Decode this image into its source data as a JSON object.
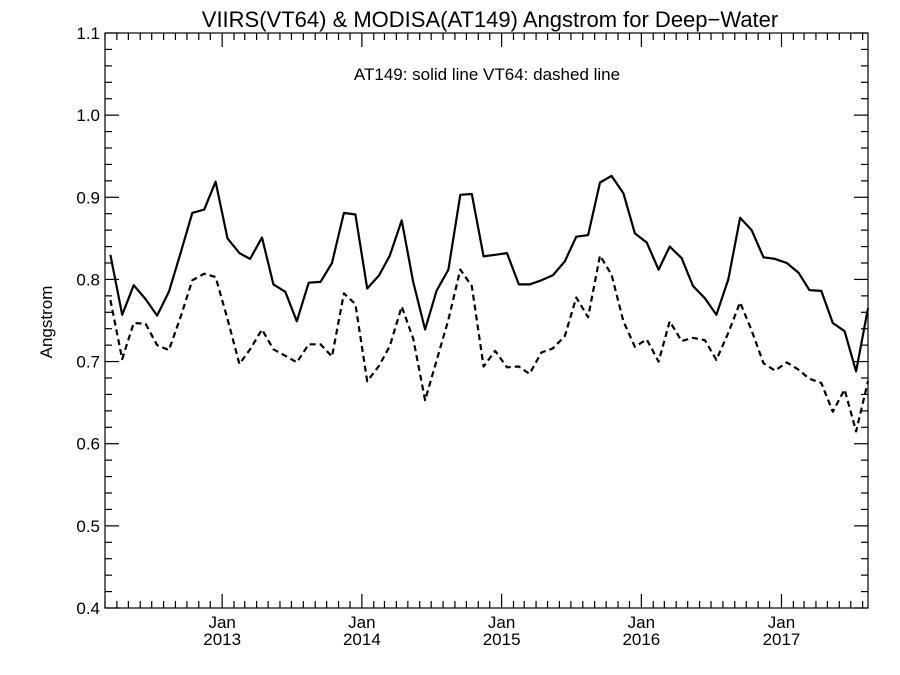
{
  "chart_data": {
    "type": "line",
    "title": "VIIRS(VT64) & MODISA(AT149)  Angstrom for Deep−Water",
    "annotation": "AT149: solid line   VT64: dashed line",
    "ylabel": "Angstrom",
    "ylim": [
      0.4,
      1.1
    ],
    "xlim": [
      "2012-03-01",
      "2017-08-15"
    ],
    "yticks": [
      "0.4",
      "0.5",
      "0.6",
      "0.7",
      "0.8",
      "0.9",
      "1.0",
      "1.1"
    ],
    "xticks": [
      {
        "month": "Jan",
        "year": "2013",
        "date": "2013-01-01"
      },
      {
        "month": "Jan",
        "year": "2014",
        "date": "2014-01-01"
      },
      {
        "month": "Jan",
        "year": "2015",
        "date": "2015-01-01"
      },
      {
        "month": "Jan",
        "year": "2016",
        "date": "2016-01-01"
      },
      {
        "month": "Jan",
        "year": "2017",
        "date": "2017-01-01"
      }
    ],
    "x": [
      "2012-03",
      "2012-04",
      "2012-05",
      "2012-06",
      "2012-07",
      "2012-08",
      "2012-09",
      "2012-10",
      "2012-11",
      "2012-12",
      "2013-01",
      "2013-02",
      "2013-03",
      "2013-04",
      "2013-05",
      "2013-06",
      "2013-07",
      "2013-08",
      "2013-09",
      "2013-10",
      "2013-11",
      "2013-12",
      "2014-01",
      "2014-02",
      "2014-03",
      "2014-04",
      "2014-05",
      "2014-06",
      "2014-07",
      "2014-08",
      "2014-09",
      "2014-10",
      "2014-11",
      "2014-12",
      "2015-01",
      "2015-02",
      "2015-03",
      "2015-04",
      "2015-05",
      "2015-06",
      "2015-07",
      "2015-08",
      "2015-09",
      "2015-10",
      "2015-11",
      "2015-12",
      "2016-01",
      "2016-02",
      "2016-03",
      "2016-04",
      "2016-05",
      "2016-06",
      "2016-07",
      "2016-08",
      "2016-09",
      "2016-10",
      "2016-11",
      "2016-12",
      "2017-01",
      "2017-02",
      "2017-03",
      "2017-04",
      "2017-05",
      "2017-06",
      "2017-07",
      "2017-08"
    ],
    "series": [
      {
        "style": "solid",
        "values": [
          0.83,
          0.757,
          0.793,
          0.776,
          0.756,
          0.785,
          0.833,
          0.881,
          0.885,
          0.919,
          0.85,
          0.832,
          0.825,
          0.851,
          0.794,
          0.785,
          0.749,
          0.796,
          0.797,
          0.82,
          0.881,
          0.879,
          0.789,
          0.805,
          0.829,
          0.872,
          0.797,
          0.739,
          0.786,
          0.812,
          0.903,
          0.904,
          0.828,
          0.83,
          0.832,
          0.794,
          0.794,
          0.799,
          0.805,
          0.822,
          0.852,
          0.854,
          0.918,
          0.926,
          0.905,
          0.856,
          0.845,
          0.812,
          0.84,
          0.826,
          0.792,
          0.777,
          0.757,
          0.8,
          0.875,
          0.86,
          0.827,
          0.825,
          0.82,
          0.808,
          0.787,
          0.786,
          0.747,
          0.737,
          0.688,
          0.765
        ]
      },
      {
        "style": "dashed",
        "values": [
          0.775,
          0.703,
          0.747,
          0.746,
          0.72,
          0.714,
          0.755,
          0.799,
          0.807,
          0.803,
          0.752,
          0.697,
          0.715,
          0.739,
          0.715,
          0.707,
          0.699,
          0.721,
          0.721,
          0.706,
          0.783,
          0.77,
          0.676,
          0.695,
          0.719,
          0.767,
          0.728,
          0.653,
          0.701,
          0.751,
          0.812,
          0.792,
          0.694,
          0.713,
          0.693,
          0.694,
          0.685,
          0.711,
          0.716,
          0.731,
          0.778,
          0.754,
          0.829,
          0.806,
          0.749,
          0.718,
          0.727,
          0.7,
          0.749,
          0.725,
          0.729,
          0.726,
          0.702,
          0.735,
          0.772,
          0.738,
          0.698,
          0.689,
          0.699,
          0.69,
          0.679,
          0.674,
          0.639,
          0.666,
          0.615,
          0.676
        ]
      }
    ],
    "grid": false,
    "legend": "none"
  }
}
